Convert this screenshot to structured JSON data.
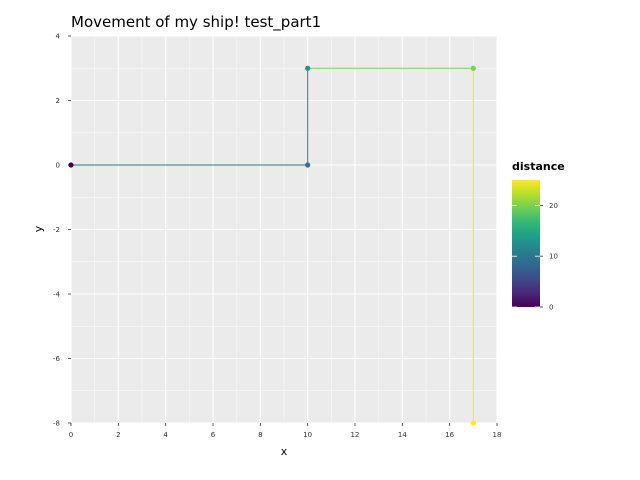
{
  "chart_data": {
    "type": "line",
    "title": "Movement of my ship! test_part1",
    "xlabel": "x",
    "ylabel": "y",
    "xlim": [
      0,
      18
    ],
    "ylim": [
      -8,
      4
    ],
    "xticks": [
      0,
      2,
      4,
      6,
      8,
      10,
      12,
      14,
      16,
      18
    ],
    "yticks": [
      -8,
      -6,
      -4,
      -2,
      0,
      2,
      4
    ],
    "grid": true,
    "points": [
      {
        "x": 0,
        "y": 0,
        "distance": 0
      },
      {
        "x": 10,
        "y": 0,
        "distance": 10
      },
      {
        "x": 10,
        "y": 3,
        "distance": 13
      },
      {
        "x": 17,
        "y": 3,
        "distance": 20
      },
      {
        "x": 17,
        "y": -8,
        "distance": 25
      }
    ],
    "color_scale": {
      "title": "distance",
      "palette": "viridis",
      "range": [
        0,
        25
      ],
      "ticks": [
        0,
        10,
        20
      ],
      "stops": [
        "#440154",
        "#482878",
        "#3e4a89",
        "#31688e",
        "#26828e",
        "#1f9e89",
        "#35b779",
        "#6ece58",
        "#b5de2b",
        "#fde725"
      ]
    },
    "panel_background": "#ebebeb",
    "grid_color": "#ffffff"
  }
}
